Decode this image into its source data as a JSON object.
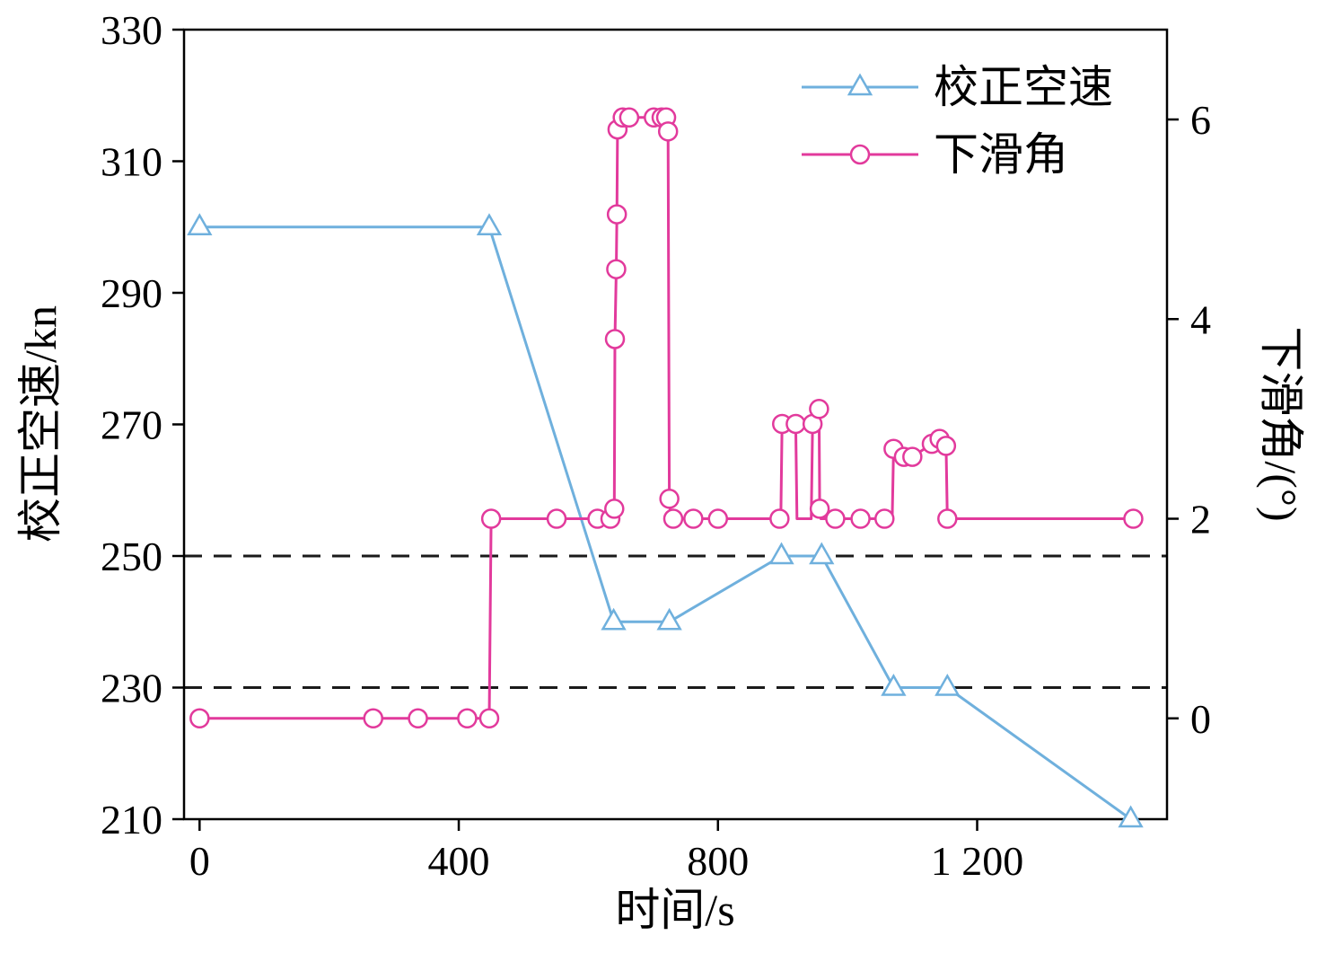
{
  "figure": {
    "background": "#ffffff"
  },
  "colors": {
    "airspeed": "#6fb0dd",
    "glide": "#e23a9c",
    "axis": "#000000",
    "dashed": "#1a1a1a",
    "marker_fill": "#ffffff"
  },
  "chart_data": {
    "type": "line",
    "title": "",
    "xlabel": "时间/s",
    "ylabel_left": "校正空速/kn",
    "ylabel_right": "下滑角/(°)",
    "xlim": [
      -24,
      1493
    ],
    "xticks": [
      0,
      400,
      800,
      1200
    ],
    "xtick_labels": [
      "0",
      "400",
      "800",
      "1 200"
    ],
    "ylim_left": [
      210,
      330
    ],
    "yticks_left": [
      210,
      230,
      250,
      270,
      290,
      310,
      330
    ],
    "ytick_labels_left": [
      "210",
      "230",
      "250",
      "270",
      "290",
      "310",
      "330"
    ],
    "ylim_right": [
      -1.01,
      6.9
    ],
    "yticks_right": [
      0,
      2,
      4,
      6
    ],
    "ytick_labels_right": [
      "0",
      "2",
      "4",
      "6"
    ],
    "grid": false,
    "legend_position": "upper right",
    "reference_lines_left": [
      250,
      230
    ],
    "series": [
      {
        "name": "校正空速",
        "axis": "left",
        "color_key": "airspeed",
        "marker": "triangle",
        "points": [
          [
            0,
            300,
            1
          ],
          [
            447,
            300,
            1
          ],
          [
            639,
            240,
            1
          ],
          [
            725,
            240,
            1
          ],
          [
            898,
            250,
            1
          ],
          [
            960,
            250,
            1
          ],
          [
            1071,
            230,
            1
          ],
          [
            1154,
            230,
            1
          ],
          [
            1437,
            210,
            1
          ]
        ]
      },
      {
        "name": "下滑角",
        "axis": "right",
        "color_key": "glide",
        "marker": "circle",
        "points": [
          [
            0,
            0,
            1
          ],
          [
            268,
            0,
            1
          ],
          [
            337,
            0,
            1
          ],
          [
            413,
            0,
            1
          ],
          [
            447,
            0,
            1
          ],
          [
            450,
            2,
            1
          ],
          [
            551,
            2,
            1
          ],
          [
            614,
            2,
            1
          ],
          [
            634,
            2,
            1
          ],
          [
            640,
            2.1,
            1
          ],
          [
            641,
            3.8,
            1
          ],
          [
            643,
            4.5,
            1
          ],
          [
            644,
            5.05,
            1
          ],
          [
            645,
            5.9,
            1
          ],
          [
            648,
            6.02,
            0
          ],
          [
            653,
            6.02,
            1
          ],
          [
            663,
            6.02,
            1
          ],
          [
            701,
            6.02,
            1
          ],
          [
            713,
            6.02,
            1
          ],
          [
            720,
            6.02,
            1
          ],
          [
            723,
            5.88,
            1
          ],
          [
            725,
            2.2,
            1
          ],
          [
            727,
            2,
            0
          ],
          [
            731,
            2,
            1
          ],
          [
            762,
            2,
            1
          ],
          [
            800,
            2,
            1
          ],
          [
            895,
            2,
            1
          ],
          [
            897,
            2,
            0
          ],
          [
            899,
            2.95,
            1
          ],
          [
            920,
            2.95,
            1
          ],
          [
            922,
            2,
            0
          ],
          [
            944,
            2,
            0
          ],
          [
            946,
            2.95,
            1
          ],
          [
            956,
            3.1,
            1
          ],
          [
            957,
            2.1,
            1
          ],
          [
            959,
            2,
            0
          ],
          [
            981,
            2,
            1
          ],
          [
            1020,
            2,
            1
          ],
          [
            1057,
            2,
            1
          ],
          [
            1069,
            2,
            0
          ],
          [
            1071,
            2.7,
            1
          ],
          [
            1087,
            2.62,
            1
          ],
          [
            1100,
            2.62,
            1
          ],
          [
            1130,
            2.75,
            1
          ],
          [
            1142,
            2.8,
            1
          ],
          [
            1152,
            2.73,
            1
          ],
          [
            1154,
            2,
            1
          ],
          [
            1441,
            2,
            1
          ]
        ]
      }
    ]
  }
}
